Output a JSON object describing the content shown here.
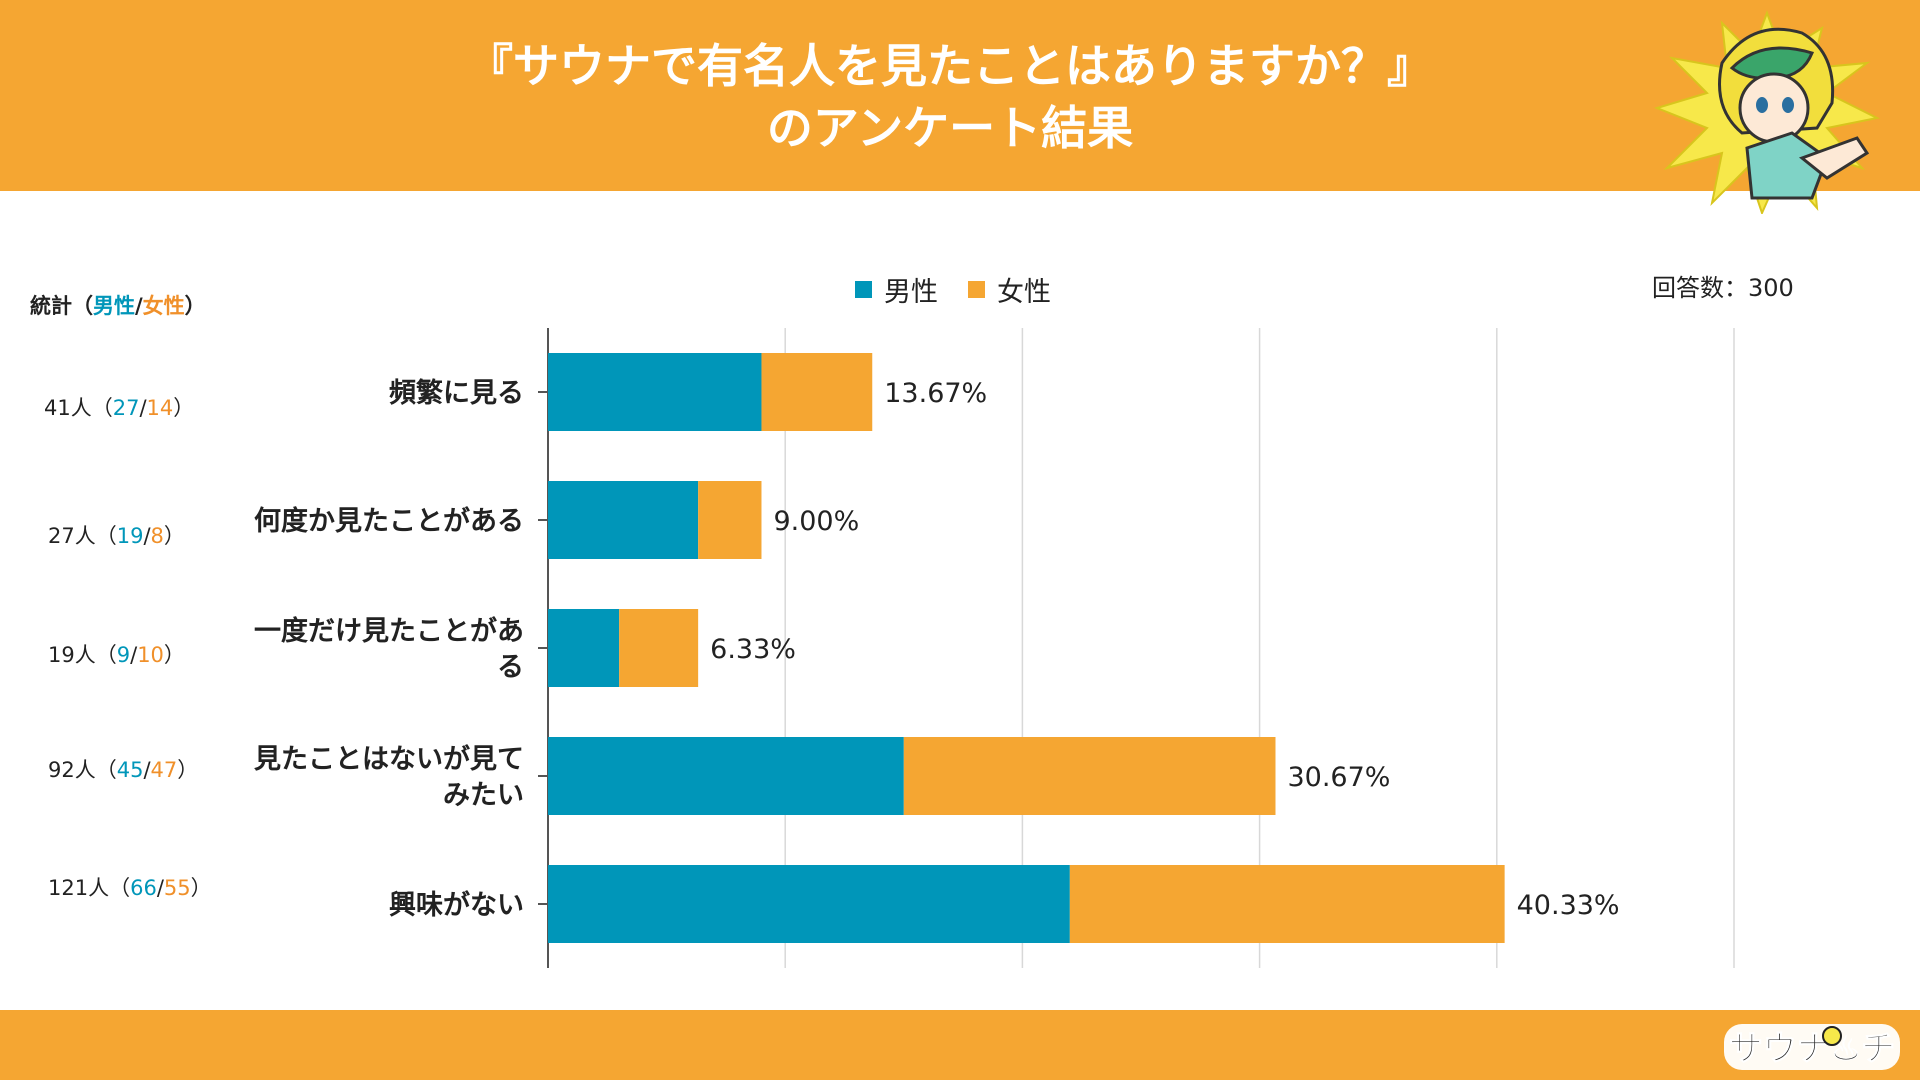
{
  "header": {
    "title_line1": "『サウナで有名人を見たことはありますか？』",
    "title_line2": "のアンケート結果",
    "background": "#F5A632"
  },
  "stats": {
    "label": "統計",
    "open_paren": "（",
    "male_label": "男性",
    "slash": "/",
    "female_label": "女性",
    "close_paren": "）",
    "unit": "人",
    "rows": [
      {
        "total": "41",
        "male": "27",
        "female": "14"
      },
      {
        "total": "27",
        "male": "19",
        "female": "8"
      },
      {
        "total": "19",
        "male": "9",
        "female": "10"
      },
      {
        "total": "92",
        "male": "45",
        "female": "47"
      },
      {
        "total": "121",
        "male": "66",
        "female": "55"
      }
    ]
  },
  "legend": {
    "male": "男性",
    "female": "女性"
  },
  "total_respondents": "回答数：300",
  "colors": {
    "male": "#0096B9",
    "female": "#F5A632",
    "grid": "#d8d8d8",
    "axis": "#555555"
  },
  "chart_data": {
    "type": "bar",
    "orientation": "horizontal",
    "stacked": true,
    "categories": [
      "頻繁に見る",
      "何度か見たことがある",
      "一度だけ見たことがある",
      "見たことはないが見てみたい",
      "興味がない"
    ],
    "category_lines": [
      [
        "頻繁に見る"
      ],
      [
        "何度か見たことがある"
      ],
      [
        "一度だけ見たことがあ",
        "る"
      ],
      [
        "見たことはないが見て",
        "みたい"
      ],
      [
        "興味がない"
      ]
    ],
    "series": [
      {
        "name": "男性",
        "values": [
          9.0,
          6.33,
          3.0,
          15.0,
          22.0
        ]
      },
      {
        "name": "女性",
        "values": [
          4.67,
          2.67,
          3.33,
          15.67,
          18.33
        ]
      }
    ],
    "totals": [
      13.67,
      9.0,
      6.33,
      30.67,
      40.33
    ],
    "data_labels": [
      "13.67%",
      "9.00%",
      "6.33%",
      "30.67%",
      "40.33%"
    ],
    "xlim": [
      0,
      70
    ],
    "grid": true,
    "legend_position": "top"
  }
}
